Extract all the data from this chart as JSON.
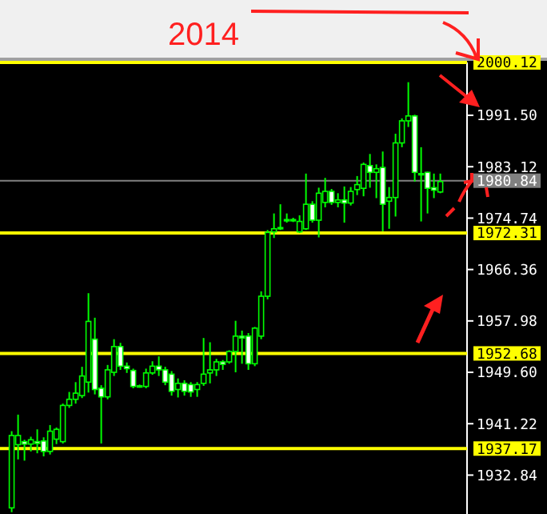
{
  "chart_data": {
    "type": "candlestick",
    "annotations": [
      "2014"
    ],
    "color": "#00ff00",
    "tick_labels": "y",
    "grid": false,
    "categories": [
      null,
      null,
      null,
      null,
      null,
      null,
      null,
      null,
      null,
      null,
      null,
      null,
      null,
      null,
      null,
      null,
      null,
      null,
      null,
      null,
      null,
      null,
      null,
      null,
      null,
      null,
      null,
      null,
      null,
      null,
      null,
      null,
      null,
      null,
      null,
      null,
      null,
      null,
      null,
      null,
      null,
      null,
      null,
      null,
      null,
      null,
      null,
      null,
      null,
      null,
      null,
      null,
      null,
      null,
      null,
      null,
      null,
      null,
      null,
      null,
      null,
      null,
      null,
      null,
      null,
      null,
      null,
      null
    ],
    "ohlc": [
      [
        1927.5,
        1940,
        1926.8,
        1939.3
      ],
      [
        1937.8,
        1942.7,
        1935.4,
        1939.3
      ],
      [
        1938.3,
        1938.6,
        1935.2,
        1937.9
      ],
      [
        1937.9,
        1939.1,
        1936.7,
        1938.6
      ],
      [
        1938.3,
        1940.3,
        1936.4,
        1938
      ],
      [
        1938.4,
        1939,
        1935.9,
        1936.7
      ],
      [
        1936.7,
        1941,
        1936.2,
        1940
      ],
      [
        1938.7,
        1940.6,
        1937.9,
        1940.3
      ],
      [
        1938.3,
        1944.5,
        1938,
        1944.2
      ],
      [
        1944.2,
        1946.4,
        1943.8,
        1945.2
      ],
      [
        1945.2,
        1948,
        1944.5,
        1946.2
      ],
      [
        1945.8,
        1950.5,
        1945.4,
        1949
      ],
      [
        1948,
        1962.5,
        1946.3,
        1957.9
      ],
      [
        1955,
        1958.5,
        1946,
        1946.8
      ],
      [
        1947,
        1947.5,
        1938,
        1945.6
      ],
      [
        1945.6,
        1950.8,
        1945.2,
        1950
      ],
      [
        1949.6,
        1955,
        1949,
        1953.8
      ],
      [
        1953.8,
        1954.4,
        1950,
        1950.6
      ],
      [
        1950.6,
        1951.2,
        1949.5,
        1950.2
      ],
      [
        1949.9,
        1950.2,
        1947,
        1947.3
      ],
      [
        1947.3,
        1947.6,
        1947.1,
        1947.4
      ],
      [
        1947.3,
        1950.2,
        1947,
        1949.5
      ],
      [
        1949.5,
        1951.4,
        1949.2,
        1950.6
      ],
      [
        1950.6,
        1952.2,
        1949,
        1950
      ],
      [
        1950,
        1950.5,
        1947.5,
        1948
      ],
      [
        1949.3,
        1949.8,
        1945.8,
        1946.5
      ],
      [
        1946.8,
        1948.6,
        1945.5,
        1947.8
      ],
      [
        1947.8,
        1948.3,
        1945.8,
        1946.5
      ],
      [
        1947.6,
        1948,
        1945.6,
        1946.4
      ],
      [
        1946.8,
        1948,
        1945.6,
        1947.6
      ],
      [
        1947.8,
        1955.2,
        1947.4,
        1949.3
      ],
      [
        1949.5,
        1954.5,
        1947.8,
        1950
      ],
      [
        1950,
        1951.8,
        1949,
        1951.3
      ],
      [
        1951.3,
        1951.6,
        1950,
        1950.9
      ],
      [
        1951.3,
        1953.2,
        1951,
        1953
      ],
      [
        1953,
        1958,
        1949.6,
        1955.5
      ],
      [
        1955.5,
        1956.4,
        1951,
        1955.2
      ],
      [
        1955.5,
        1956,
        1950,
        1951
      ],
      [
        1951,
        1957,
        1950.6,
        1956.8
      ],
      [
        1955.5,
        1962.8,
        1955,
        1962
      ],
      [
        1962,
        1972.8,
        1961.5,
        1972.4
      ],
      [
        1972.5,
        1975.5,
        1971.5,
        1973
      ],
      [
        1973,
        1977,
        1972.8,
        1973.2
      ],
      [
        1974.5,
        1975.5,
        1974,
        1974.4
      ],
      [
        1974.4,
        1974.8,
        1974.1,
        1974.5
      ],
      [
        1972.5,
        1975.2,
        1972.3,
        1974.2
      ],
      [
        1973,
        1982,
        1972.8,
        1977
      ],
      [
        1977,
        1977.5,
        1974,
        1974.4
      ],
      [
        1974.4,
        1979.7,
        1971.6,
        1978.8
      ],
      [
        1977.3,
        1981.3,
        1976.5,
        1979.1
      ],
      [
        1979.1,
        1979.5,
        1976.9,
        1977.3
      ],
      [
        1977.3,
        1978.8,
        1976.5,
        1977.7
      ],
      [
        1977.7,
        1979.9,
        1974,
        1977.2
      ],
      [
        1977.2,
        1979.8,
        1976.8,
        1979.1
      ],
      [
        1979.4,
        1981.6,
        1978.5,
        1980.2
      ],
      [
        1979.6,
        1983.8,
        1978.3,
        1983.5
      ],
      [
        1983.3,
        1985.2,
        1979.7,
        1982.2
      ],
      [
        1982.2,
        1983.5,
        1978,
        1982.8
      ],
      [
        1983,
        1985.6,
        1972.6,
        1977
      ],
      [
        1977.5,
        1979.8,
        1973,
        1978.1
      ],
      [
        1978.1,
        1988.5,
        1975,
        1987
      ],
      [
        1987,
        1991,
        1986.3,
        1990.6
      ],
      [
        1990.6,
        1996.9,
        1989.6,
        1991.4
      ],
      [
        1991.4,
        1991.6,
        1980.7,
        1982.2
      ],
      [
        1982,
        1986.3,
        1974.2,
        1981.8
      ],
      [
        1982.2,
        1982.3,
        1975.5,
        1979.6
      ],
      [
        1979.7,
        1982,
        1978,
        1979.3
      ],
      [
        1979,
        1982,
        1978.8,
        1980.7
      ]
    ],
    "ylim": [
      1926.5,
      2000.12
    ],
    "yticks": [
      {
        "value": 1991.5,
        "label": "1991.50"
      },
      1983.12,
      1974.74,
      1966.36,
      1957.98,
      {
        "value": 1949.6,
        "label": "1949.60"
      },
      1941.22,
      1932.84
    ],
    "ref_lines": [
      {
        "axis": "y",
        "value": 2000.12,
        "label": "2000.12",
        "color": "#ffff00"
      },
      {
        "axis": "y",
        "value": 1980.84,
        "label": "1980.84",
        "color": "#808080"
      },
      {
        "axis": "y",
        "value": 1972.31,
        "label": "1972.31",
        "color": "#ffff00"
      },
      {
        "axis": "y",
        "value": 1952.68,
        "label": "1952.68",
        "color": "#ffff00"
      },
      {
        "axis": "y",
        "value": 1937.17,
        "label": "1937.17",
        "color": "#ffff00"
      }
    ]
  }
}
